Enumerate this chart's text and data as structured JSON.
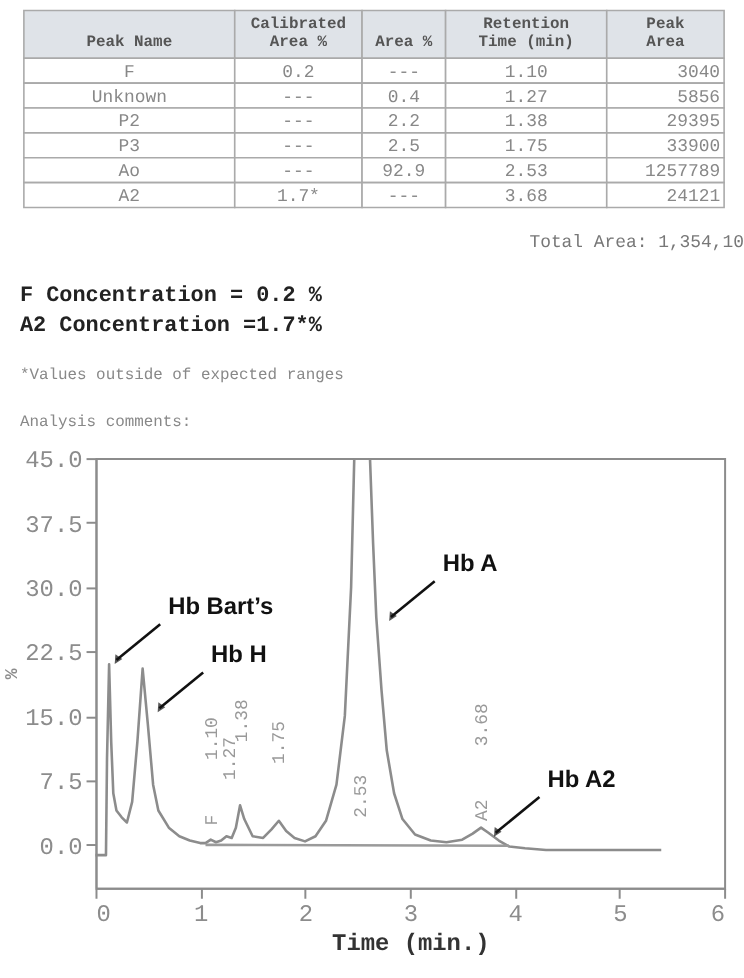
{
  "chart_data": [
    {
      "type": "other",
      "categories": [
        "Peak Name",
        "Calibrated\nArea %",
        "Area %",
        "Retention\nTime (min)",
        "Peak\nArea"
      ],
      "annotations": [
        "F",
        "0.2",
        "---",
        "1.10",
        "3040",
        "Unknown",
        "---",
        "0.4",
        "1.27",
        "5856",
        "P2",
        "---",
        "2.2",
        "1.38",
        "29395",
        "P3",
        "---",
        "2.5",
        "1.75",
        "33900",
        "Ao",
        "---",
        "92.9",
        "2.53",
        "1257789",
        "A2",
        "1.7*",
        "---",
        "3.68",
        "24121",
        "Total Area: 1,354,10",
        "F Concentration = 0.2 %",
        "A2 Concentration =1.7*%",
        "*Values outside of expected ranges",
        "Analysis comments:"
      ]
    },
    {
      "type": "line",
      "xlabel": "Time (min.)",
      "ylabel": "%",
      "xlim": [
        0,
        6
      ],
      "ylim": [
        -5,
        45
      ],
      "xticks": [
        0,
        1,
        2,
        3,
        4,
        5,
        6
      ],
      "yticks": [
        {
          "value": 0,
          "label": "0.0"
        },
        {
          "value": 7.5,
          "label": "7.5"
        },
        {
          "value": 15,
          "label": "15.0"
        },
        {
          "value": 22.5,
          "label": "22.5"
        },
        {
          "value": 30,
          "label": "30.0"
        },
        {
          "value": 37.5,
          "label": "37.5"
        },
        {
          "value": 45,
          "label": "45.0"
        }
      ],
      "grid": false,
      "legend": false,
      "marker": "none",
      "line_style": "solid",
      "series": [
        {
          "color": "#8c8c8c",
          "x": [
            0,
            0.1,
            0.11,
            0.13,
            0.15,
            0.17,
            0.2,
            0.25,
            0.3,
            0.35,
            0.4,
            0.45,
            0.5,
            0.55,
            0.6,
            0.7,
            0.8,
            0.9,
            1.0,
            1.05,
            1.1,
            1.15,
            1.2,
            1.25,
            1.3,
            1.34,
            1.38,
            1.42,
            1.5,
            1.6,
            1.68,
            1.75,
            1.82,
            1.9,
            2.0,
            2.1,
            2.2,
            2.3,
            2.38,
            2.44,
            2.47,
            2.53,
            2.62,
            2.65,
            2.68,
            2.73,
            2.78,
            2.85,
            2.93,
            3.05,
            3.2,
            3.35,
            3.5,
            3.6,
            3.68,
            3.75,
            3.85,
            3.95,
            4.1,
            4.3,
            4.6,
            5.0,
            5.4
          ],
          "values": [
            -1.2,
            -1.2,
            10,
            21,
            12,
            6,
            4,
            3.2,
            2.6,
            5,
            12,
            20.5,
            14,
            7,
            4,
            2,
            1,
            0.5,
            0.2,
            0.2,
            0.6,
            0.3,
            0.5,
            1.0,
            0.8,
            2,
            4.6,
            3,
            1,
            0.8,
            1.8,
            2.8,
            1.6,
            0.8,
            0.4,
            1,
            2.8,
            7,
            15,
            30,
            45,
            null,
            45,
            35,
            26.5,
            18,
            11,
            6,
            3,
            1.2,
            0.5,
            0.3,
            0.6,
            1.3,
            2.0,
            1.4,
            0.5,
            -0.2,
            -0.4,
            -0.6,
            -0.6,
            -0.6,
            -0.6
          ]
        },
        {
          "color": "#9a9a9a",
          "x": [
            1.05,
            3.95
          ],
          "values": [
            0,
            -0.1
          ]
        }
      ],
      "annotations": [
        "F",
        "1.10",
        "1.27",
        "1.38",
        "1.75",
        "2.53",
        "A2",
        "3.68",
        {
          "text": "Hb Bart’s",
          "x": 0.2,
          "y": 21.5
        },
        {
          "text": "Hb H",
          "x": 0.61,
          "y": 15.9
        },
        {
          "text": "Hb A",
          "x": 2.82,
          "y": 26.5
        },
        {
          "text": "Hb A2",
          "x": 3.82,
          "y": 1.4
        }
      ]
    }
  ]
}
